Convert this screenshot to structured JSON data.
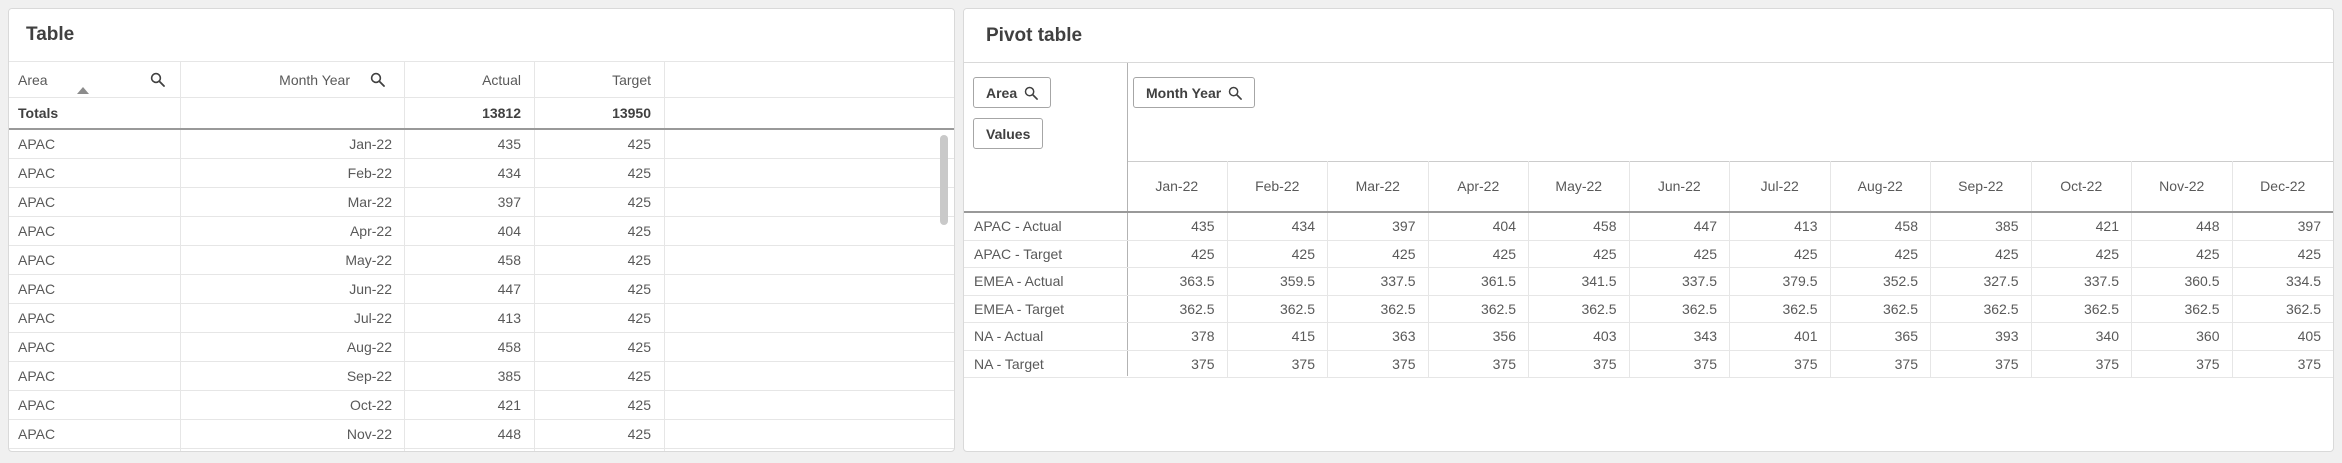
{
  "colors": {
    "page_background": "#f0f0f0",
    "panel_background": "#ffffff",
    "panel_border": "#d9d9d9",
    "grid_line": "#e6e6e6",
    "strong_rule": "#999999",
    "text": "#595959",
    "text_strong": "#404040",
    "scrollbar_thumb": "#c9c9c9"
  },
  "left_table": {
    "title": "Table",
    "columns": [
      {
        "label": "Area",
        "align": "left",
        "search_icon": true,
        "sorted": "asc"
      },
      {
        "label": "Month Year",
        "align": "right",
        "search_icon": true
      },
      {
        "label": "Actual",
        "align": "right"
      },
      {
        "label": "Target",
        "align": "right"
      }
    ],
    "totals": {
      "label": "Totals",
      "actual": "13812",
      "target": "13950"
    },
    "rows": [
      {
        "area": "APAC",
        "month": "Jan-22",
        "actual": "435",
        "target": "425"
      },
      {
        "area": "APAC",
        "month": "Feb-22",
        "actual": "434",
        "target": "425"
      },
      {
        "area": "APAC",
        "month": "Mar-22",
        "actual": "397",
        "target": "425"
      },
      {
        "area": "APAC",
        "month": "Apr-22",
        "actual": "404",
        "target": "425"
      },
      {
        "area": "APAC",
        "month": "May-22",
        "actual": "458",
        "target": "425"
      },
      {
        "area": "APAC",
        "month": "Jun-22",
        "actual": "447",
        "target": "425"
      },
      {
        "area": "APAC",
        "month": "Jul-22",
        "actual": "413",
        "target": "425"
      },
      {
        "area": "APAC",
        "month": "Aug-22",
        "actual": "458",
        "target": "425"
      },
      {
        "area": "APAC",
        "month": "Sep-22",
        "actual": "385",
        "target": "425"
      },
      {
        "area": "APAC",
        "month": "Oct-22",
        "actual": "421",
        "target": "425"
      },
      {
        "area": "APAC",
        "month": "Nov-22",
        "actual": "448",
        "target": "425"
      }
    ],
    "scrollbar": {
      "visible": true
    }
  },
  "pivot_table": {
    "title": "Pivot table",
    "row_dimension_button": {
      "label": "Area",
      "search_icon": true
    },
    "values_button": {
      "label": "Values"
    },
    "column_dimension_button": {
      "label": "Month Year",
      "search_icon": true
    },
    "column_headers": [
      "Jan-22",
      "Feb-22",
      "Mar-22",
      "Apr-22",
      "May-22",
      "Jun-22",
      "Jul-22",
      "Aug-22",
      "Sep-22",
      "Oct-22",
      "Nov-22",
      "Dec-22"
    ],
    "rows": [
      {
        "label": "APAC - Actual",
        "values": [
          "435",
          "434",
          "397",
          "404",
          "458",
          "447",
          "413",
          "458",
          "385",
          "421",
          "448",
          "397"
        ]
      },
      {
        "label": "APAC - Target",
        "values": [
          "425",
          "425",
          "425",
          "425",
          "425",
          "425",
          "425",
          "425",
          "425",
          "425",
          "425",
          "425"
        ]
      },
      {
        "label": "EMEA - Actual",
        "values": [
          "363.5",
          "359.5",
          "337.5",
          "361.5",
          "341.5",
          "337.5",
          "379.5",
          "352.5",
          "327.5",
          "337.5",
          "360.5",
          "334.5"
        ]
      },
      {
        "label": "EMEA - Target",
        "values": [
          "362.5",
          "362.5",
          "362.5",
          "362.5",
          "362.5",
          "362.5",
          "362.5",
          "362.5",
          "362.5",
          "362.5",
          "362.5",
          "362.5"
        ]
      },
      {
        "label": "NA - Actual",
        "values": [
          "378",
          "415",
          "363",
          "356",
          "403",
          "343",
          "401",
          "365",
          "393",
          "340",
          "360",
          "405"
        ]
      },
      {
        "label": "NA - Target",
        "values": [
          "375",
          "375",
          "375",
          "375",
          "375",
          "375",
          "375",
          "375",
          "375",
          "375",
          "375",
          "375"
        ]
      }
    ]
  },
  "icons": {
    "search": "magnifier",
    "sort_ascending": "triangle-up"
  }
}
